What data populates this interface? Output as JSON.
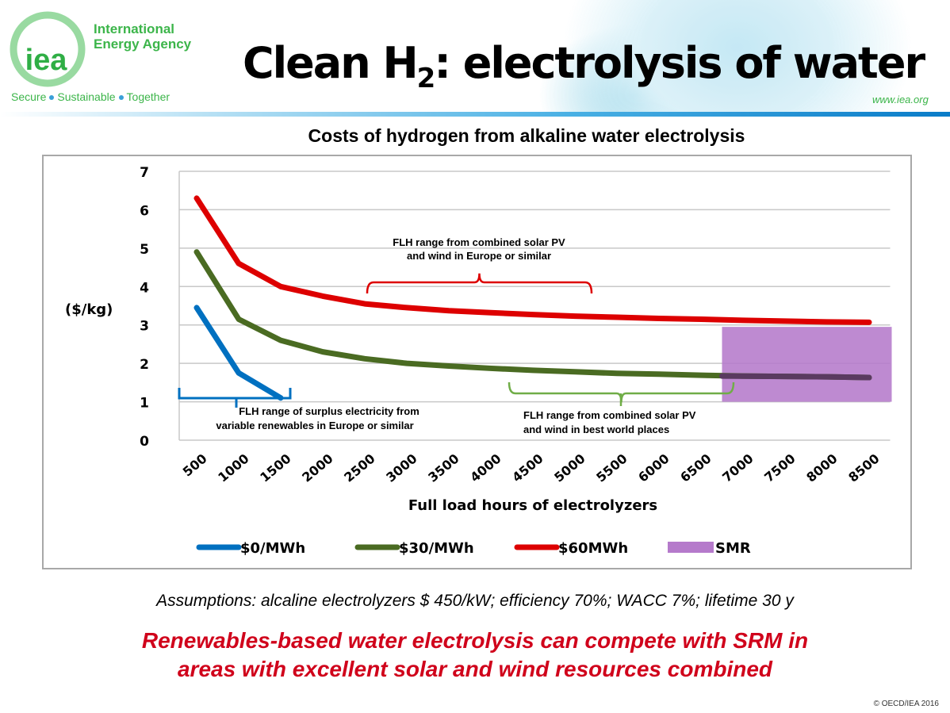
{
  "header": {
    "org_line1": "International",
    "org_line2": "Energy Agency",
    "logo_text": "iea",
    "tagline": [
      "Secure",
      "Sustainable",
      "Together"
    ],
    "title_main": "Clean H",
    "title_sub": "2",
    "title_rest": ": electrolysis of water",
    "url": "www.iea.org"
  },
  "chart_data": {
    "type": "line",
    "title": "Costs of hydrogen from alkaline water electrolysis",
    "xlabel": "Full load hours of electrolyzers",
    "ylabel": "($/kg)",
    "ylim": [
      0,
      7
    ],
    "yticks": [
      "0",
      "1",
      "2",
      "3",
      "4",
      "5",
      "6",
      "7"
    ],
    "categories": [
      "500",
      "1000",
      "1500",
      "2000",
      "2500",
      "3000",
      "3500",
      "4000",
      "4500",
      "5000",
      "5500",
      "6000",
      "6500",
      "7000",
      "7500",
      "8000",
      "8500"
    ],
    "grid": true,
    "legend_placement": "bottom",
    "series": [
      {
        "name": "$0/MWh",
        "color": "#0070c0",
        "values": [
          3.45,
          1.75,
          1.1,
          null,
          null,
          null,
          null,
          null,
          null,
          null,
          null,
          null,
          null,
          null,
          null,
          null,
          null
        ]
      },
      {
        "name": "$30/MWh",
        "color": "#4a6b22",
        "values": [
          4.9,
          3.15,
          2.6,
          2.3,
          2.12,
          2.0,
          1.93,
          1.87,
          1.82,
          1.78,
          1.74,
          1.72,
          1.69,
          1.67,
          1.66,
          1.65,
          1.63
        ]
      },
      {
        "name": "$60MWh",
        "color": "#dd0000",
        "values": [
          6.3,
          4.6,
          4.0,
          3.75,
          3.55,
          3.45,
          3.37,
          3.32,
          3.27,
          3.23,
          3.2,
          3.17,
          3.15,
          3.12,
          3.1,
          3.08,
          3.07
        ]
      }
    ],
    "bands": [
      {
        "name": "SMR",
        "color": "#b57acb",
        "x_from": "7000",
        "x_to": "8500",
        "y_from": 1.0,
        "y_to": 2.95
      }
    ],
    "annotations": [
      {
        "text": [
          "FLH range from combined solar PV",
          "and wind in Europe or similar"
        ],
        "color": "#dd0000",
        "x_from": "2500",
        "x_to": "5000"
      },
      {
        "text": [
          "FLH range of surplus electricity from",
          "variable renewables in Europe or similar"
        ],
        "color": "#0070c0",
        "x_from": "500",
        "x_to": "1500"
      },
      {
        "text": [
          "FLH range from combined solar PV",
          "and wind in best world places"
        ],
        "color": "#70ad47",
        "x_from": "4000",
        "x_to": "7000"
      }
    ]
  },
  "footer": {
    "assumptions": "Assumptions: alcaline electrolyzers $ 450/kW; efficiency 70%; WACC 7%; lifetime 30 y",
    "conclusion_line1": "Renewables-based water electrolysis can compete with SRM in",
    "conclusion_line2": "areas with excellent solar and wind resources combined",
    "copyright": "© OECD/IEA 2016"
  }
}
